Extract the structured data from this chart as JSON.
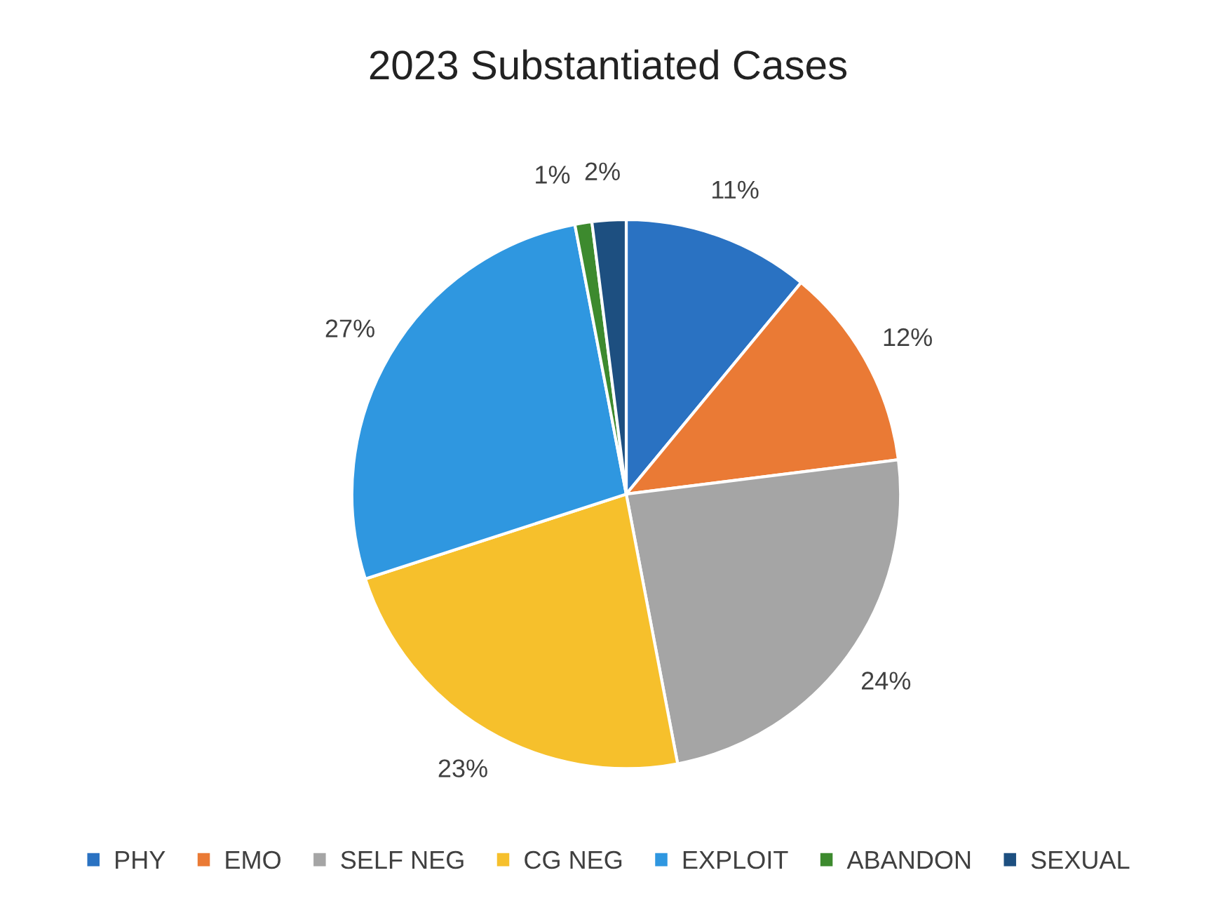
{
  "chart_data": {
    "type": "pie",
    "title": "2023 Substantiated Cases",
    "categories": [
      "PHY",
      "EMO",
      "SELF NEG",
      "CG NEG",
      "EXPLOIT",
      "ABANDON",
      "SEXUAL"
    ],
    "values": [
      11,
      12,
      24,
      23,
      27,
      1,
      2
    ],
    "colors": [
      "#2a72c2",
      "#ea7a35",
      "#a5a5a5",
      "#f6c02c",
      "#2f97e0",
      "#3d8a2e",
      "#1d4f80"
    ],
    "value_labels": [
      "11%",
      "12%",
      "24%",
      "23%",
      "27%",
      "1%",
      "2%"
    ],
    "legend": "bottom"
  }
}
